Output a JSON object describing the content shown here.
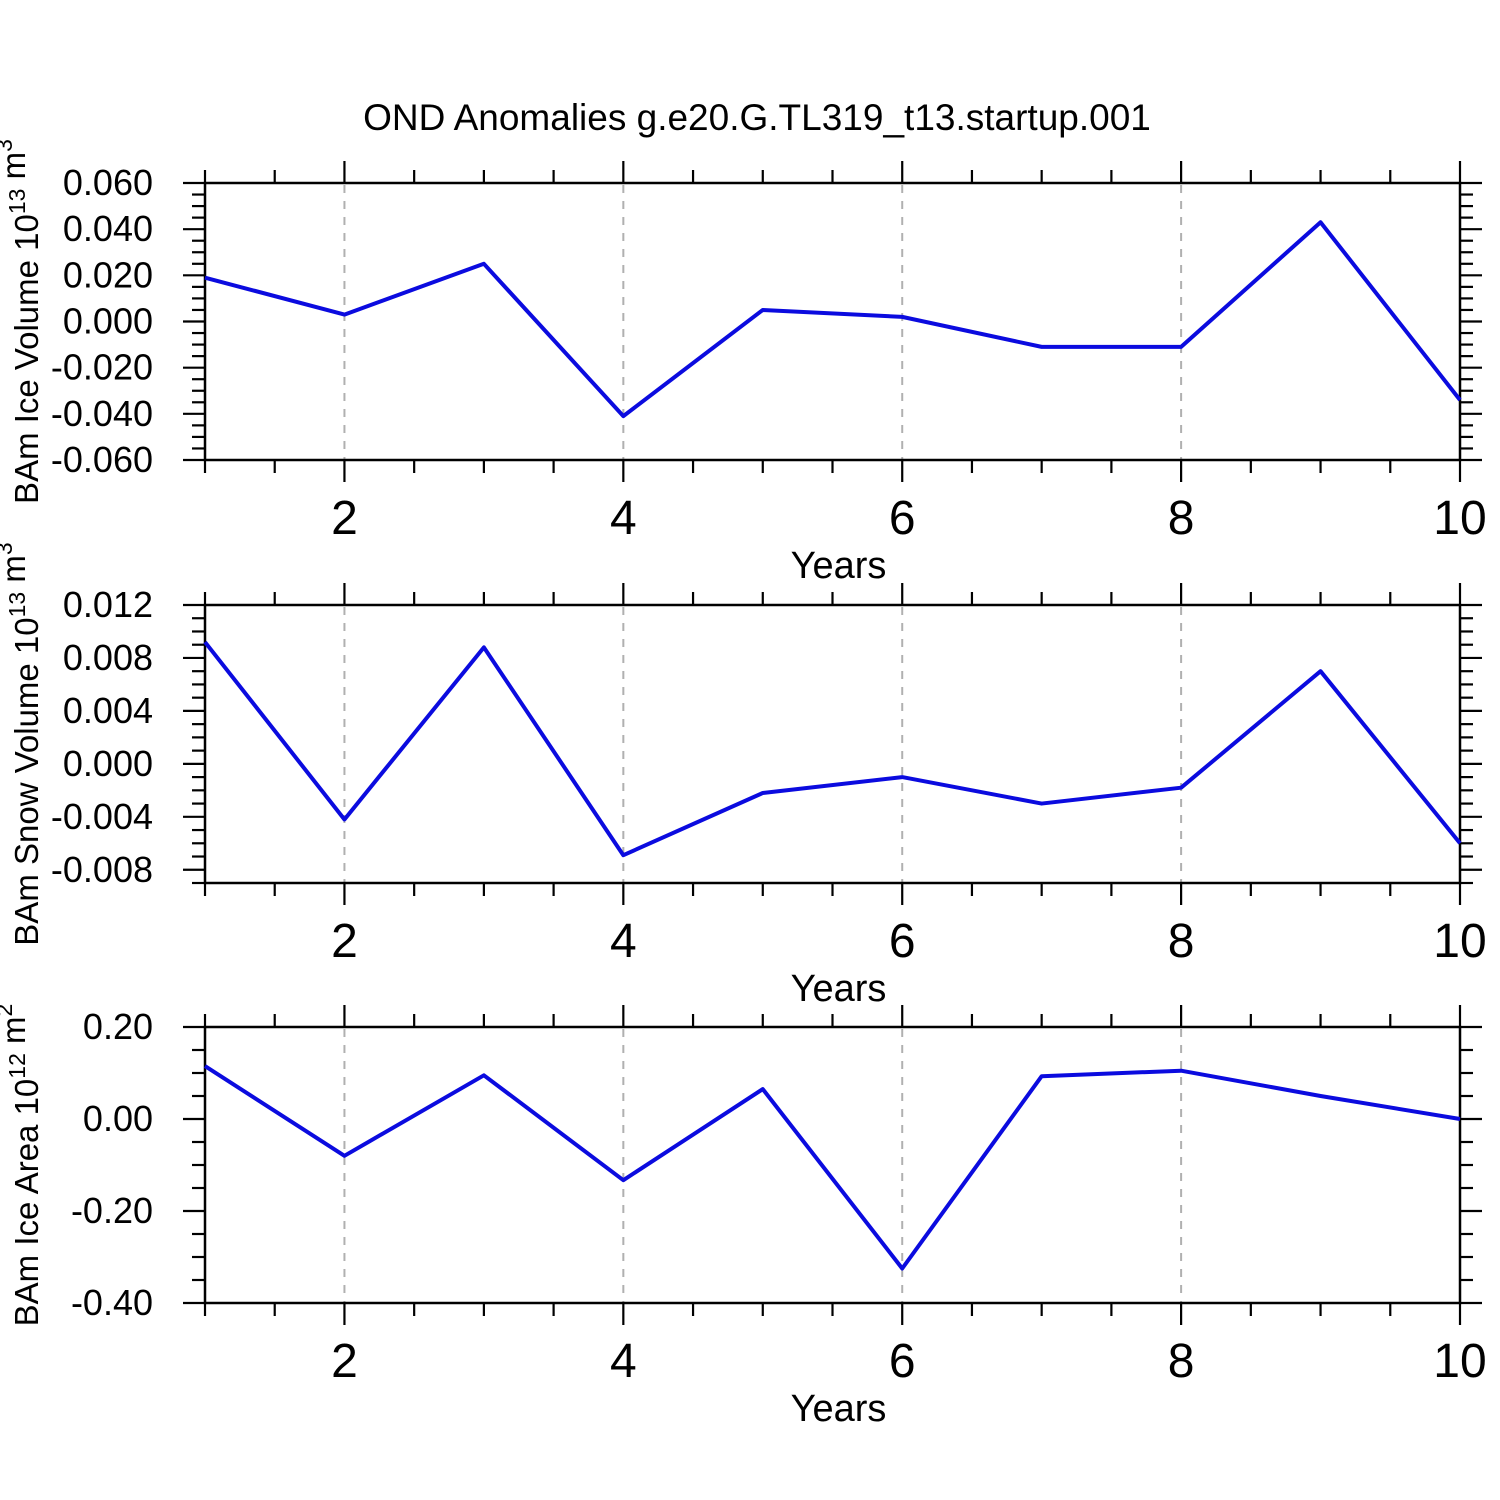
{
  "title": "OND Anomalies g.e20.G.TL319_t13.startup.001",
  "chart_data": {
    "type": "line",
    "x": [
      1,
      2,
      3,
      4,
      5,
      6,
      7,
      8,
      9,
      10
    ],
    "x_major_ticks": [
      2,
      4,
      6,
      8,
      10
    ],
    "x_major_tick_labels": [
      "2",
      "4",
      "6",
      "8",
      "10"
    ],
    "x_minor_step": 0.5,
    "grid_x": [
      2,
      4,
      6,
      8
    ],
    "xlim": [
      1,
      10
    ],
    "grid_on": true,
    "legend": "none",
    "line_color": "#0b0bdf",
    "grid_color": "#b0b0b0",
    "panels": [
      {
        "name": "ice-volume",
        "ylabel_text": "BAm Ice Volume 10^13 m^3",
        "ylabel_parts": [
          "BAm Ice Volume 10",
          "13",
          " m",
          "3"
        ],
        "xlabel": "Years",
        "values": [
          0.019,
          0.003,
          0.025,
          -0.041,
          0.005,
          0.002,
          -0.011,
          -0.011,
          0.043,
          -0.034
        ],
        "ylim": [
          -0.06,
          0.06
        ],
        "y_major_ticks": [
          0.06,
          0.04,
          0.02,
          0.0,
          -0.02,
          -0.04,
          -0.06
        ],
        "y_tick_labels": [
          "0.060",
          "0.040",
          "0.020",
          "0.000",
          "-0.020",
          "-0.040",
          "-0.060"
        ],
        "y_minor_step": 0.005
      },
      {
        "name": "snow-volume",
        "ylabel_text": "BAm Snow Volume 10^13 m^3",
        "ylabel_parts": [
          "BAm Snow Volume 10",
          "13",
          " m",
          "3"
        ],
        "xlabel": "Years",
        "values": [
          0.0092,
          -0.0042,
          0.0088,
          -0.0069,
          -0.0022,
          -0.001,
          -0.003,
          -0.0018,
          0.007,
          -0.006
        ],
        "ylim": [
          -0.009,
          0.012
        ],
        "y_major_ticks": [
          0.012,
          0.008,
          0.004,
          0.0,
          -0.004,
          -0.008
        ],
        "y_tick_labels": [
          "0.012",
          "0.008",
          "0.004",
          "0.000",
          "-0.004",
          "-0.008"
        ],
        "y_minor_step": 0.001
      },
      {
        "name": "ice-area",
        "ylabel_text": "BAm Ice Area 10^12 m^2",
        "ylabel_parts": [
          "BAm Ice Area 10",
          "12",
          " m",
          "2"
        ],
        "xlabel": "Years",
        "values": [
          0.115,
          -0.08,
          0.095,
          -0.133,
          0.065,
          -0.325,
          0.093,
          0.105,
          0.05,
          0.0
        ],
        "ylim": [
          -0.4,
          0.2
        ],
        "y_major_ticks": [
          0.2,
          0.0,
          -0.2,
          -0.4
        ],
        "y_tick_labels": [
          "0.20",
          "0.00",
          "-0.20",
          "-0.40"
        ],
        "y_minor_step": 0.05
      }
    ]
  }
}
